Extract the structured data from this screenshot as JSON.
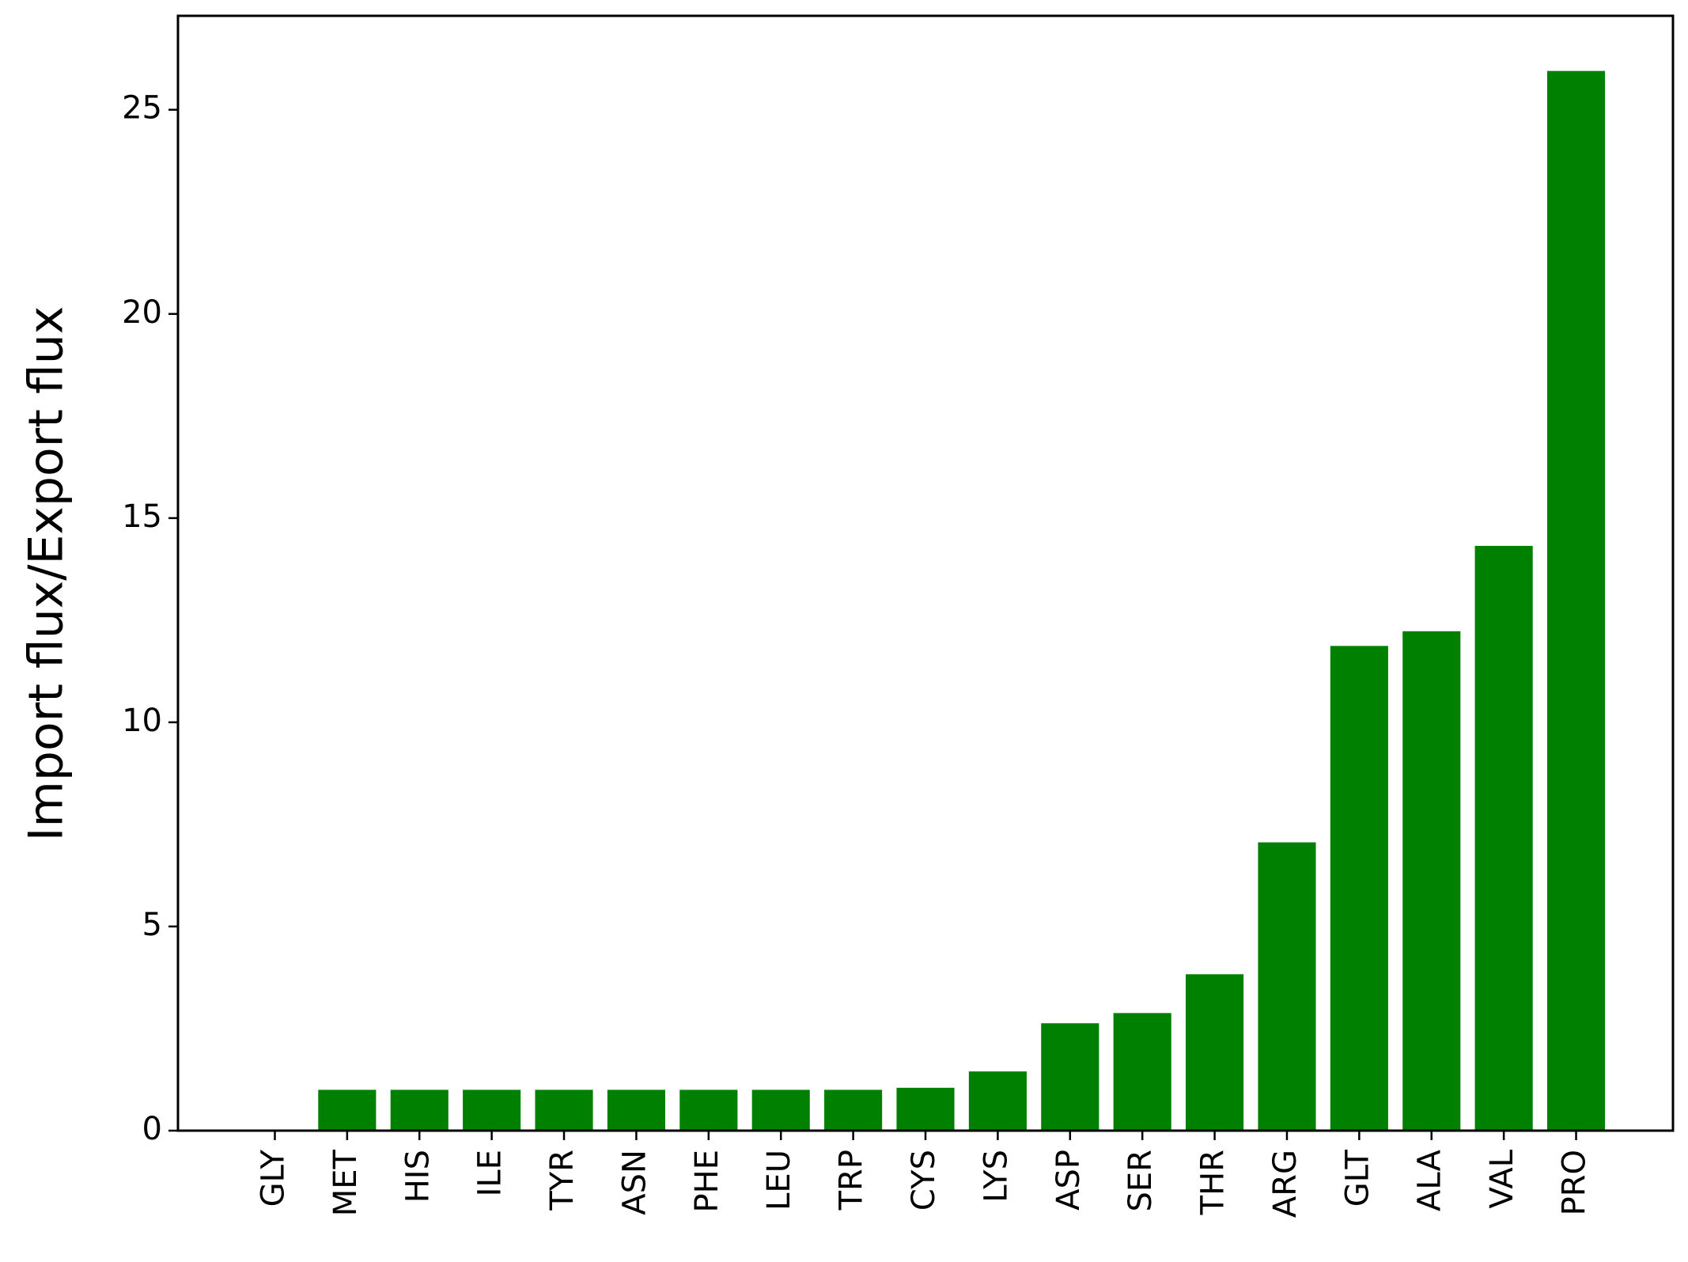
{
  "chart_data": {
    "type": "bar",
    "ylabel": "Import flux/Export flux",
    "categories": [
      "GLY",
      "MET",
      "HIS",
      "ILE",
      "TYR",
      "ASN",
      "PHE",
      "LEU",
      "TRP",
      "CYS",
      "LYS",
      "ASP",
      "SER",
      "THR",
      "ARG",
      "GLT",
      "ALA",
      "VAL",
      "PRO"
    ],
    "values": [
      0,
      1.0,
      1.0,
      1.0,
      1.0,
      1.0,
      1.0,
      1.0,
      1.0,
      1.05,
      1.45,
      2.63,
      2.88,
      3.83,
      7.06,
      11.87,
      12.23,
      14.32,
      25.95
    ],
    "color": "#008000",
    "ylim": [
      0,
      27.3
    ],
    "yticks": [
      0,
      5,
      10,
      15,
      20,
      25
    ],
    "grid": false
  }
}
